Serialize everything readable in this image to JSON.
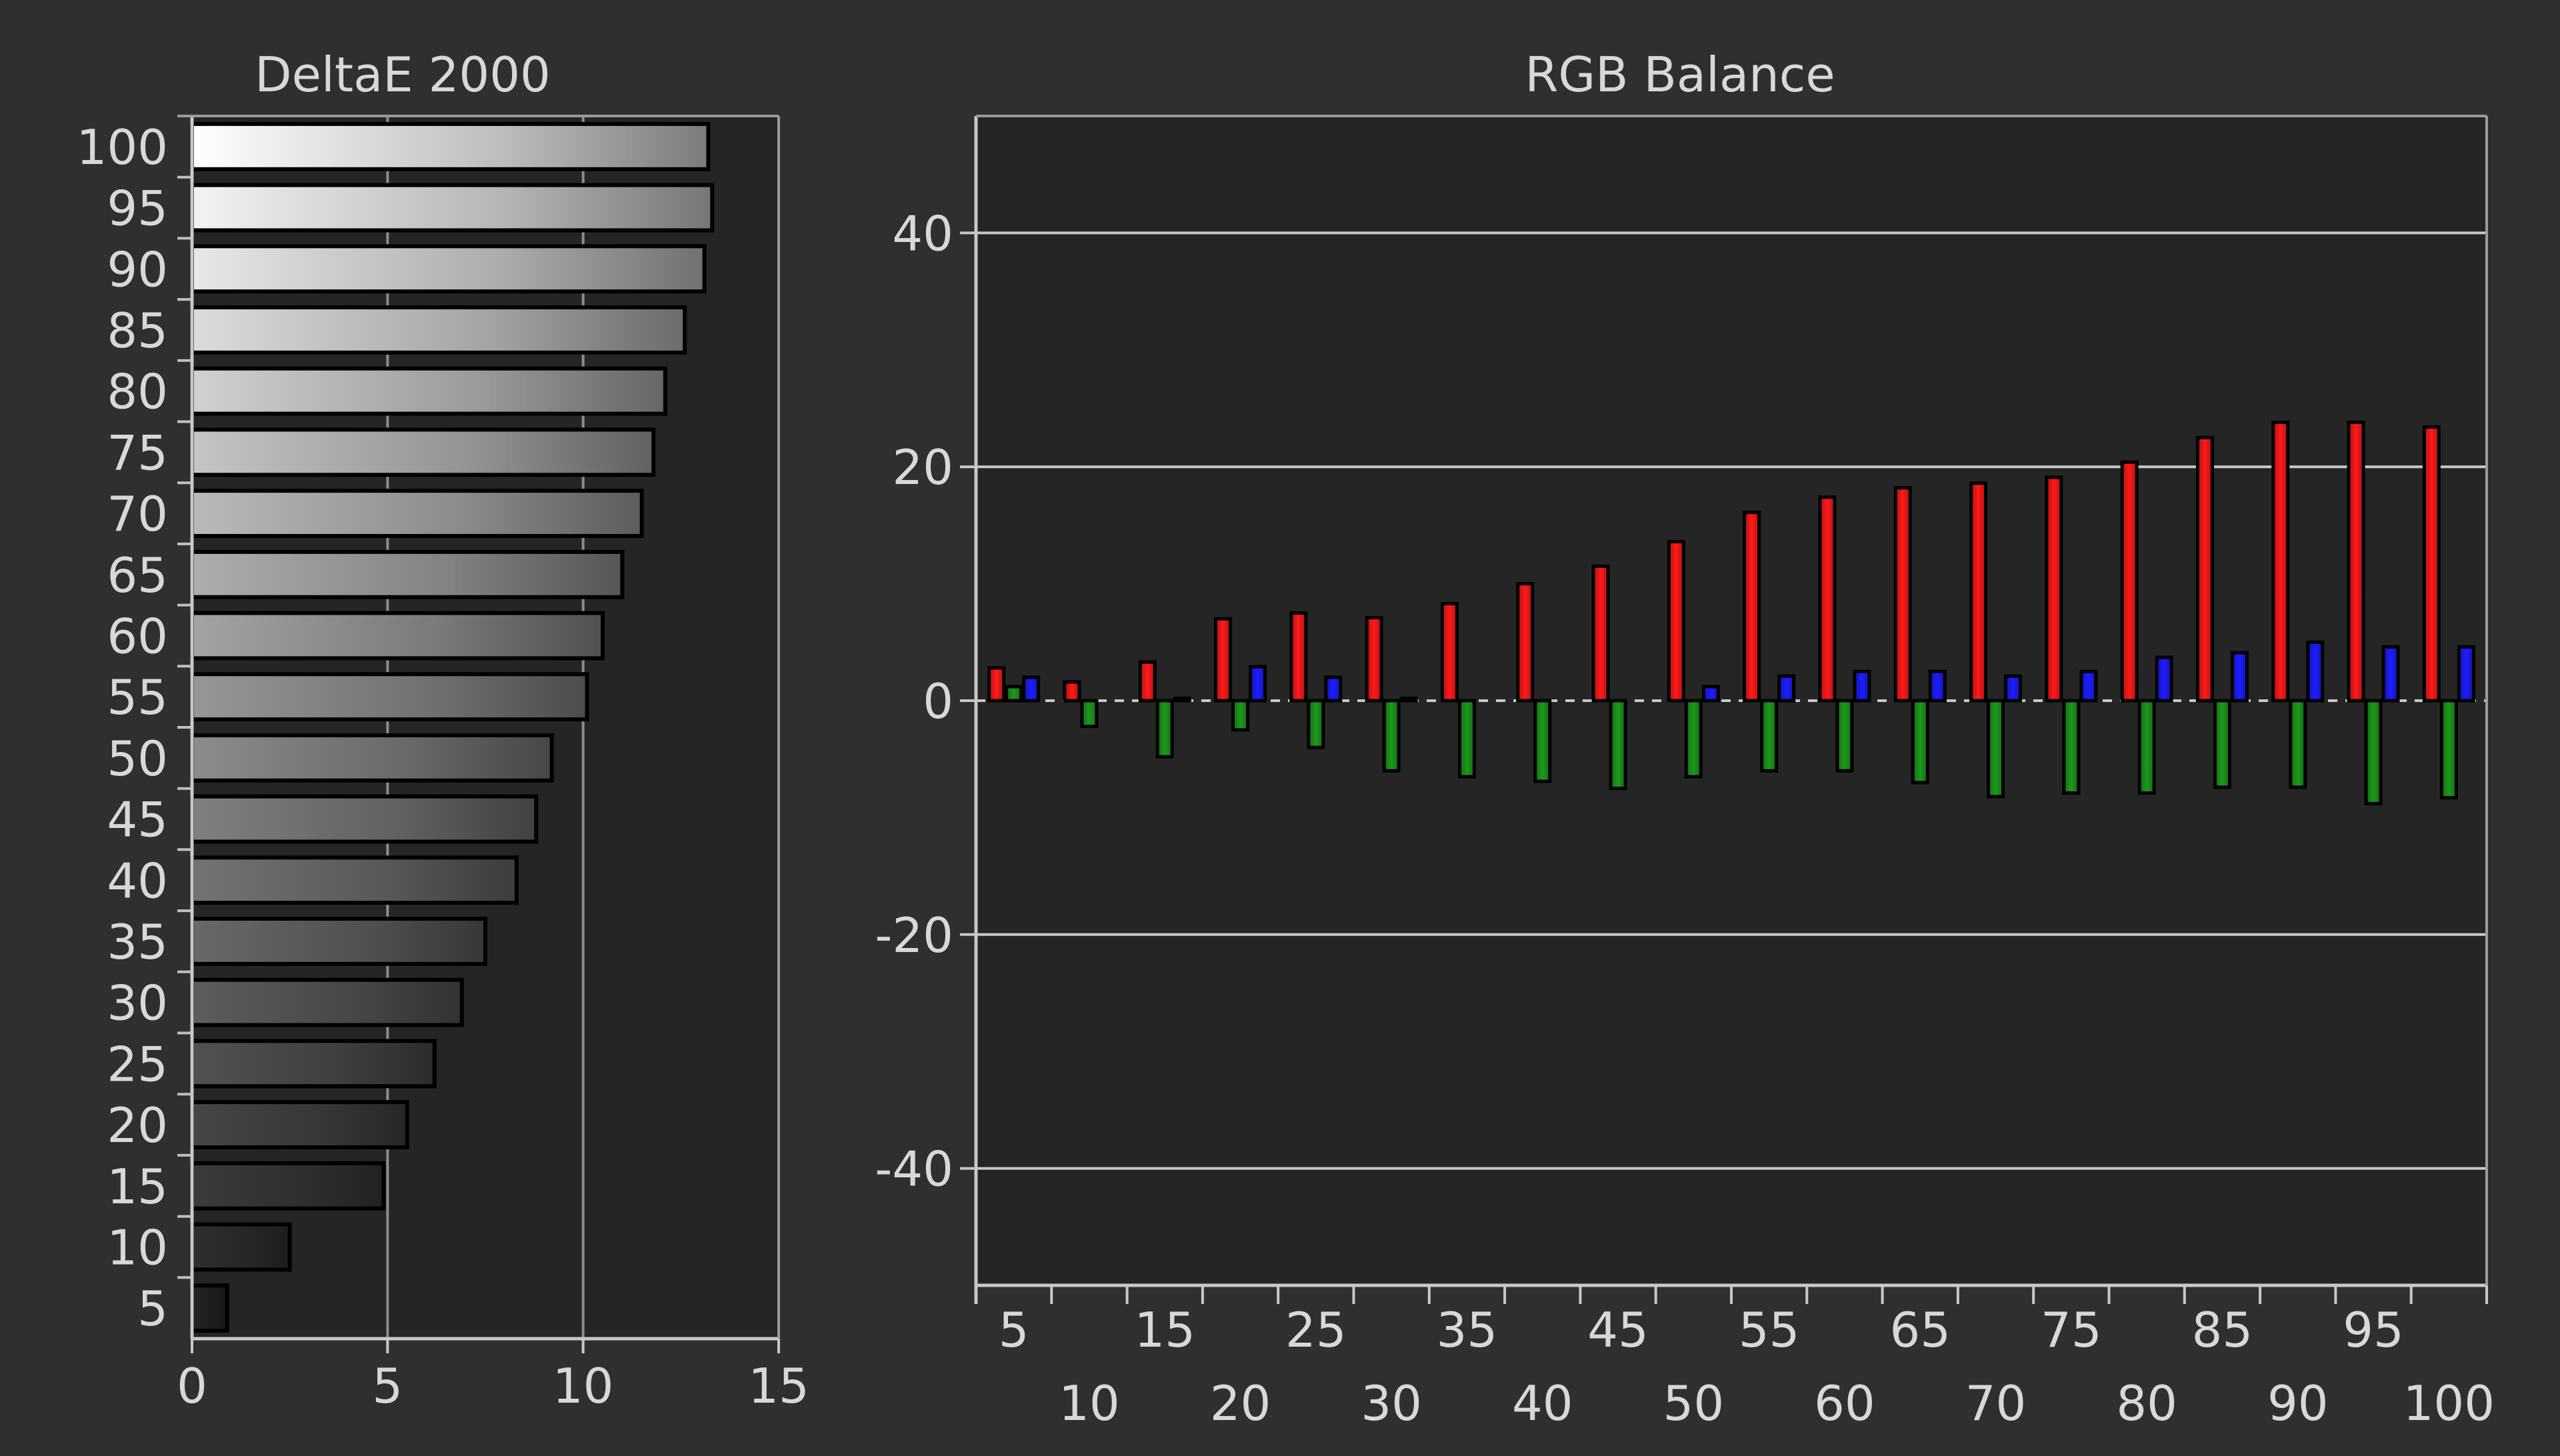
{
  "chart_data": [
    {
      "type": "bar",
      "orientation": "horizontal",
      "title": "DeltaE 2000",
      "categories": [
        "5",
        "10",
        "15",
        "20",
        "25",
        "30",
        "35",
        "40",
        "45",
        "50",
        "55",
        "60",
        "65",
        "70",
        "75",
        "80",
        "85",
        "90",
        "95",
        "100"
      ],
      "values": [
        0.9,
        2.5,
        4.9,
        5.5,
        6.2,
        6.9,
        7.5,
        8.3,
        8.8,
        9.2,
        10.1,
        10.5,
        11.0,
        11.5,
        11.8,
        12.1,
        12.6,
        13.1,
        13.3,
        13.2
      ],
      "xlim": [
        0,
        15
      ],
      "xticks": [
        0,
        5,
        10,
        15
      ],
      "grid": "vertical",
      "bar_fill": "grayscale gradient by level"
    },
    {
      "type": "bar",
      "title": "RGB Balance",
      "categories": [
        "5",
        "10",
        "15",
        "20",
        "25",
        "30",
        "35",
        "40",
        "45",
        "50",
        "55",
        "60",
        "65",
        "70",
        "75",
        "80",
        "85",
        "90",
        "95",
        "100"
      ],
      "series": [
        {
          "color": "#ff1a1a",
          "values": [
            2.8,
            1.6,
            3.3,
            7.0,
            7.5,
            7.1,
            8.3,
            10.0,
            11.5,
            13.6,
            16.1,
            17.4,
            18.2,
            18.6,
            19.1,
            20.4,
            22.5,
            23.8,
            23.8,
            23.4
          ]
        },
        {
          "color": "#1c9a1c",
          "values": [
            1.2,
            -2.2,
            -4.8,
            -2.5,
            -4.0,
            -6.0,
            -6.5,
            -6.9,
            -7.5,
            -6.5,
            -6.0,
            -6.0,
            -7.0,
            -8.2,
            -7.9,
            -7.9,
            -7.4,
            -7.4,
            -8.8,
            -8.3
          ]
        },
        {
          "color": "#1d1dff",
          "values": [
            2.0,
            0.0,
            0.2,
            2.9,
            2.0,
            0.2,
            0.0,
            0.0,
            0.0,
            1.2,
            2.1,
            2.5,
            2.5,
            2.1,
            2.5,
            3.7,
            4.1,
            5.0,
            4.6,
            4.6
          ]
        }
      ],
      "ylim": [
        -50,
        50
      ],
      "yticks": [
        -40,
        -20,
        0,
        20,
        40
      ],
      "xticks_bottom_row": [
        "10",
        "20",
        "30",
        "40",
        "50",
        "60",
        "70",
        "80",
        "90",
        "100"
      ],
      "xticks_top_row": [
        "5",
        "15",
        "25",
        "35",
        "45",
        "55",
        "65",
        "75",
        "85",
        "95"
      ],
      "grid": "horizontal",
      "zero_line": "dashed"
    }
  ]
}
